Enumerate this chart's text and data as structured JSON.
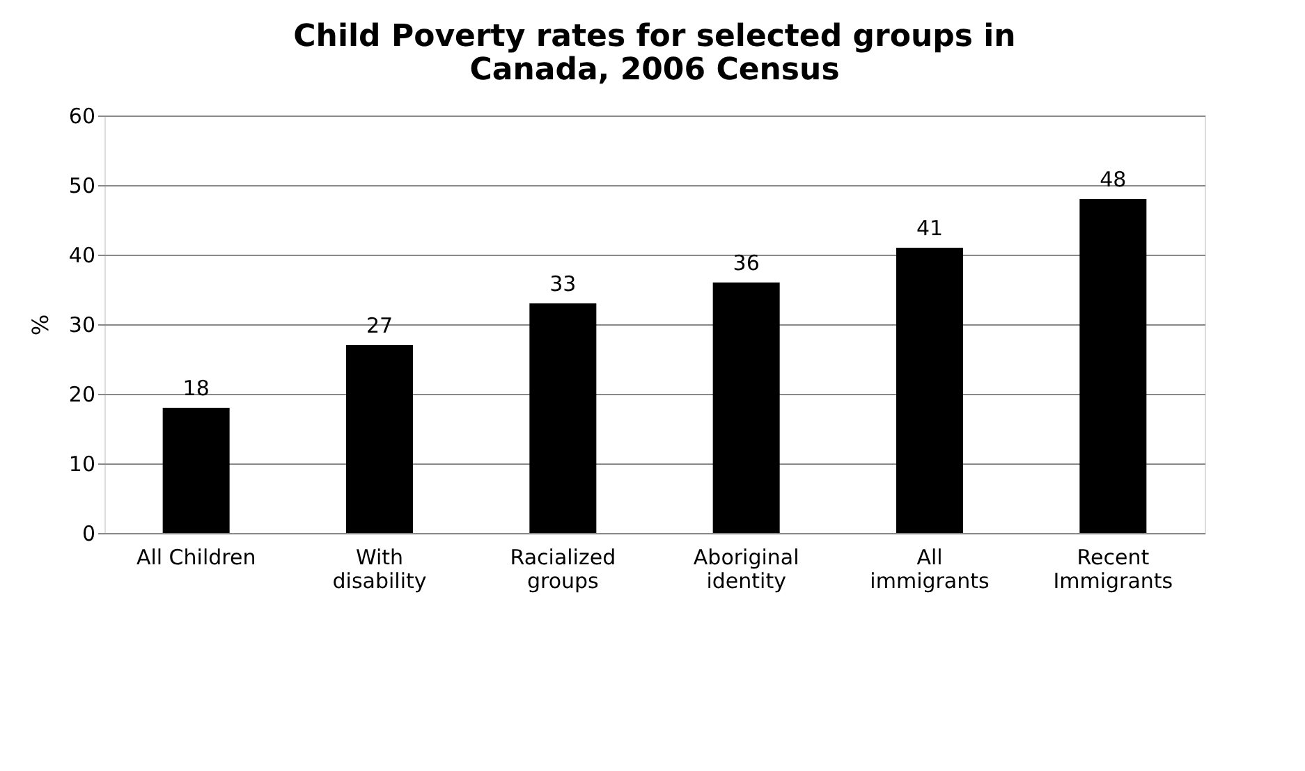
{
  "chart_data": {
    "type": "bar",
    "title": "Child Poverty rates for selected groups in Canada, 2006 Census",
    "ylabel": "%",
    "categories": [
      "All Children",
      "With disability",
      "Racialized groups",
      "Aboriginal identity",
      "All immigrants",
      "Recent Immigrants"
    ],
    "values": [
      18,
      27,
      33,
      36,
      41,
      48
    ],
    "color": "#000000",
    "ylim": [
      0,
      60
    ],
    "yticks": [
      0,
      10,
      20,
      30,
      40,
      50,
      60
    ],
    "grid": "y",
    "data_labels": true
  }
}
